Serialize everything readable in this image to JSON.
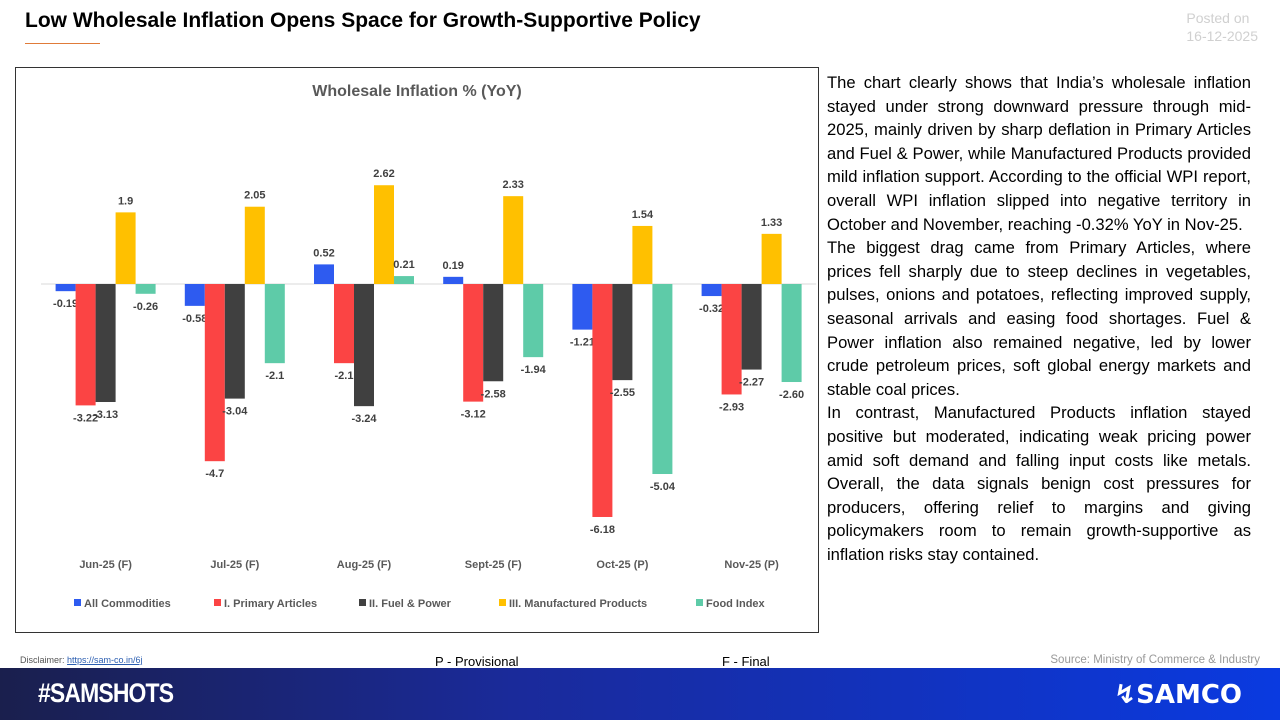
{
  "header": {
    "title": "Low Wholesale Inflation Opens Space for Growth-Supportive Policy",
    "posted_label": "Posted on",
    "posted_date": "16-12-2025"
  },
  "chart_data": {
    "type": "bar",
    "title": "Wholesale Inflation % (YoY)",
    "categories": [
      "Jun-25 (F)",
      "Jul-25 (F)",
      "Aug-25 (F)",
      "Sept-25 (F)",
      "Oct-25 (P)",
      "Nov-25 (P)"
    ],
    "series": [
      {
        "name": "All Commodities",
        "color": "#2e5bf0",
        "values": [
          -0.19,
          -0.58,
          0.52,
          0.19,
          -1.21,
          -0.32
        ],
        "labels": [
          "-0.19",
          "-0.58",
          "0.52",
          "0.19",
          "-1.21",
          "-0.32"
        ]
      },
      {
        "name": "I. Primary Articles",
        "color": "#fb4444",
        "values": [
          -3.22,
          -4.7,
          -2.1,
          -3.12,
          -6.18,
          -2.93
        ],
        "labels": [
          "-3.22",
          "-4.7",
          "-2.1",
          "-3.12",
          "-6.18",
          "-2.93"
        ]
      },
      {
        "name": "II. Fuel & Power",
        "color": "#404040",
        "values": [
          -3.13,
          -3.04,
          -3.24,
          -2.58,
          -2.55,
          -2.27
        ],
        "labels": [
          "-3.13",
          "-3.04",
          "-3.24",
          "-2.58",
          "-2.55",
          "-2.27"
        ]
      },
      {
        "name": "III. Manufactured Products",
        "color": "#ffc000",
        "values": [
          1.9,
          2.05,
          2.62,
          2.33,
          1.54,
          1.33
        ],
        "labels": [
          "1.9",
          "2.05",
          "2.62",
          "2.33",
          "1.54",
          "1.33"
        ]
      },
      {
        "name": "Food Index",
        "color": "#5ecba8",
        "values": [
          -0.26,
          -2.1,
          0.21,
          -1.94,
          -5.04,
          -2.6
        ],
        "labels": [
          "-0.26",
          "-2.1",
          "0.21",
          "-1.94",
          "-5.04",
          "-2.60"
        ]
      }
    ],
    "legend_position": "bottom",
    "grid": false,
    "ylim": [
      -6.5,
      3.5
    ]
  },
  "commentary": [
    "The chart clearly shows that India’s wholesale inflation stayed under strong downward pressure through mid-2025, mainly driven by sharp deflation in Primary Articles and Fuel & Power, while Manufactured Products provided mild inflation support. According to the official WPI report, overall WPI inflation slipped into negative territory in October and November, reaching -0.32% YoY in Nov-25.",
    "The biggest drag came from Primary Articles, where prices fell sharply due to steep declines in vegetables, pulses, onions and potatoes, reflecting improved supply, seasonal arrivals and easing food shortages. Fuel & Power inflation also remained negative, led by lower crude petroleum prices, soft global energy markets and stable coal prices.",
    "In contrast, Manufactured Products inflation stayed positive but moderated, indicating weak pricing power amid soft demand and falling input costs like metals. Overall, the data signals benign cost pressures for producers, offering relief to margins and giving policymakers room to remain growth-supportive as inflation risks stay contained."
  ],
  "footer": {
    "disclaimer_label": "Disclaimer:",
    "disclaimer_link": "https://sam-co.in/6j",
    "note_provisional": "P - Provisional",
    "note_final": "F -  Final",
    "source": "Source: Ministry of Commerce & Industry",
    "hashtag": "#SAMSHOTS",
    "logo": "SAMCO"
  }
}
